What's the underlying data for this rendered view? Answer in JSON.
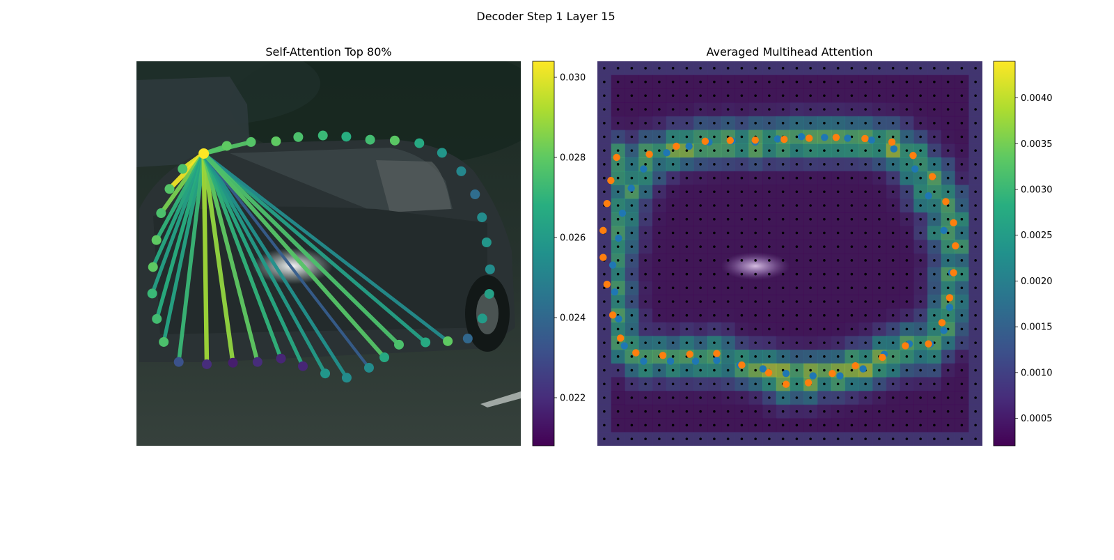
{
  "figure": {
    "title": "Decoder Step 1 Layer 15"
  },
  "chart_data": [
    {
      "type": "scatter",
      "title": "Self-Attention Top 80%",
      "background": "blurred photo of a dark grey car on a road",
      "colormap": "viridis",
      "grid": false,
      "legend": "none",
      "colorbar": {
        "min": 0.0208,
        "max": 0.0304,
        "ticks": [
          0.022,
          0.024,
          0.026,
          0.028,
          0.03
        ],
        "tick_labels": [
          "0.022",
          "0.024",
          "0.026",
          "0.028",
          "0.030"
        ]
      },
      "source_point": {
        "x": 0.175,
        "y": 0.24,
        "value": 0.0304
      },
      "points": [
        {
          "x": 0.235,
          "y": 0.22,
          "value": 0.028
        },
        {
          "x": 0.298,
          "y": 0.21,
          "value": 0.0278
        },
        {
          "x": 0.363,
          "y": 0.208,
          "value": 0.028
        },
        {
          "x": 0.421,
          "y": 0.197,
          "value": 0.0276
        },
        {
          "x": 0.485,
          "y": 0.193,
          "value": 0.0272
        },
        {
          "x": 0.546,
          "y": 0.196,
          "value": 0.0268
        },
        {
          "x": 0.608,
          "y": 0.204,
          "value": 0.0274
        },
        {
          "x": 0.672,
          "y": 0.206,
          "value": 0.0279
        },
        {
          "x": 0.736,
          "y": 0.213,
          "value": 0.0266
        },
        {
          "x": 0.795,
          "y": 0.238,
          "value": 0.0258
        },
        {
          "x": 0.845,
          "y": 0.286,
          "value": 0.0252
        },
        {
          "x": 0.881,
          "y": 0.346,
          "value": 0.0242
        },
        {
          "x": 0.899,
          "y": 0.406,
          "value": 0.0254
        },
        {
          "x": 0.911,
          "y": 0.471,
          "value": 0.0258
        },
        {
          "x": 0.92,
          "y": 0.541,
          "value": 0.0254
        },
        {
          "x": 0.918,
          "y": 0.605,
          "value": 0.0262
        },
        {
          "x": 0.9,
          "y": 0.669,
          "value": 0.026
        },
        {
          "x": 0.862,
          "y": 0.721,
          "value": 0.024
        },
        {
          "x": 0.81,
          "y": 0.728,
          "value": 0.028
        },
        {
          "x": 0.752,
          "y": 0.731,
          "value": 0.0266
        },
        {
          "x": 0.683,
          "y": 0.737,
          "value": 0.0276
        },
        {
          "x": 0.645,
          "y": 0.77,
          "value": 0.0266
        },
        {
          "x": 0.605,
          "y": 0.797,
          "value": 0.0254
        },
        {
          "x": 0.547,
          "y": 0.823,
          "value": 0.0254
        },
        {
          "x": 0.491,
          "y": 0.812,
          "value": 0.0258
        },
        {
          "x": 0.433,
          "y": 0.793,
          "value": 0.0218
        },
        {
          "x": 0.376,
          "y": 0.773,
          "value": 0.0218
        },
        {
          "x": 0.315,
          "y": 0.782,
          "value": 0.022
        },
        {
          "x": 0.251,
          "y": 0.784,
          "value": 0.0216
        },
        {
          "x": 0.183,
          "y": 0.788,
          "value": 0.022
        },
        {
          "x": 0.11,
          "y": 0.782,
          "value": 0.0232
        },
        {
          "x": 0.071,
          "y": 0.73,
          "value": 0.0276
        },
        {
          "x": 0.053,
          "y": 0.67,
          "value": 0.0274
        },
        {
          "x": 0.041,
          "y": 0.604,
          "value": 0.0272
        },
        {
          "x": 0.043,
          "y": 0.535,
          "value": 0.028
        },
        {
          "x": 0.052,
          "y": 0.465,
          "value": 0.028
        },
        {
          "x": 0.064,
          "y": 0.395,
          "value": 0.0276
        },
        {
          "x": 0.086,
          "y": 0.332,
          "value": 0.0278
        },
        {
          "x": 0.12,
          "y": 0.28,
          "value": 0.0276
        }
      ],
      "edges": [
        {
          "to": 0.12,
          "toy": 0.28,
          "value": 0.03
        },
        {
          "to": 0.086,
          "toy": 0.332,
          "value": 0.0302
        },
        {
          "to": 0.064,
          "toy": 0.395,
          "value": 0.0284
        },
        {
          "to": 0.052,
          "toy": 0.465,
          "value": 0.027
        },
        {
          "to": 0.043,
          "toy": 0.535,
          "value": 0.0266
        },
        {
          "to": 0.041,
          "toy": 0.604,
          "value": 0.0262
        },
        {
          "to": 0.053,
          "toy": 0.67,
          "value": 0.0268
        },
        {
          "to": 0.071,
          "toy": 0.73,
          "value": 0.0264
        },
        {
          "to": 0.11,
          "toy": 0.782,
          "value": 0.0272
        },
        {
          "to": 0.183,
          "toy": 0.788,
          "value": 0.029
        },
        {
          "to": 0.251,
          "toy": 0.784,
          "value": 0.0288
        },
        {
          "to": 0.315,
          "toy": 0.782,
          "value": 0.028
        },
        {
          "to": 0.376,
          "toy": 0.773,
          "value": 0.027
        },
        {
          "to": 0.433,
          "toy": 0.793,
          "value": 0.0266
        },
        {
          "to": 0.491,
          "toy": 0.812,
          "value": 0.026
        },
        {
          "to": 0.547,
          "toy": 0.823,
          "value": 0.0256
        },
        {
          "to": 0.605,
          "toy": 0.797,
          "value": 0.0236
        },
        {
          "to": 0.645,
          "toy": 0.77,
          "value": 0.0278
        },
        {
          "to": 0.752,
          "toy": 0.731,
          "value": 0.0262
        },
        {
          "to": 0.81,
          "toy": 0.728,
          "value": 0.0254
        },
        {
          "to": 0.683,
          "toy": 0.737,
          "value": 0.0276
        },
        {
          "to": 0.298,
          "toy": 0.21,
          "value": 0.0278
        },
        {
          "to": 0.235,
          "toy": 0.22,
          "value": 0.0278
        }
      ]
    },
    {
      "type": "heatmap",
      "title": "Averaged Multihead Attention",
      "background": "blurred photo of a dark grey car on a road (dimmed)",
      "colormap": "viridis",
      "grid_size": [
        28,
        28
      ],
      "grid": false,
      "legend": "none",
      "colorbar": {
        "min": 0.0002,
        "max": 0.0044,
        "ticks": [
          0.0005,
          0.001,
          0.0015,
          0.002,
          0.0025,
          0.003,
          0.0035,
          0.004
        ],
        "tick_labels": [
          "0.0005",
          "0.0010",
          "0.0015",
          "0.0020",
          "0.0025",
          "0.0030",
          "0.0035",
          "0.0040"
        ]
      },
      "grid_point_color": "#000000",
      "series": [
        {
          "color": "#1f77b4",
          "points": [
            [
              0.18,
              0.238
            ],
            [
              0.238,
              0.221
            ],
            [
              0.29,
              0.21
            ],
            [
              0.35,
              0.207
            ],
            [
              0.41,
              0.21
            ],
            [
              0.468,
              0.202
            ],
            [
              0.53,
              0.196
            ],
            [
              0.59,
              0.198
            ],
            [
              0.65,
              0.2
            ],
            [
              0.712,
              0.205
            ],
            [
              0.77,
              0.228
            ],
            [
              0.825,
              0.28
            ],
            [
              0.86,
              0.35
            ],
            [
              0.9,
              0.44
            ],
            [
              0.92,
              0.55
            ],
            [
              0.915,
              0.64
            ],
            [
              0.9,
              0.7
            ],
            [
              0.865,
              0.735
            ],
            [
              0.81,
              0.735
            ],
            [
              0.745,
              0.762
            ],
            [
              0.69,
              0.8
            ],
            [
              0.63,
              0.818
            ],
            [
              0.56,
              0.818
            ],
            [
              0.49,
              0.812
            ],
            [
              0.43,
              0.8
            ],
            [
              0.37,
              0.79
            ],
            [
              0.31,
              0.778
            ],
            [
              0.255,
              0.78
            ],
            [
              0.19,
              0.78
            ],
            [
              0.12,
              0.78
            ],
            [
              0.07,
              0.74
            ],
            [
              0.055,
              0.67
            ],
            [
              0.045,
              0.6
            ],
            [
              0.04,
              0.53
            ],
            [
              0.055,
              0.46
            ],
            [
              0.065,
              0.395
            ],
            [
              0.088,
              0.33
            ],
            [
              0.12,
              0.28
            ]
          ]
        },
        {
          "color": "#ff7f0e",
          "points": [
            [
              0.135,
              0.242
            ],
            [
              0.205,
              0.221
            ],
            [
              0.28,
              0.208
            ],
            [
              0.345,
              0.206
            ],
            [
              0.41,
              0.205
            ],
            [
              0.485,
              0.203
            ],
            [
              0.55,
              0.2
            ],
            [
              0.62,
              0.198
            ],
            [
              0.695,
              0.201
            ],
            [
              0.765,
              0.21
            ],
            [
              0.82,
              0.245
            ],
            [
              0.87,
              0.3
            ],
            [
              0.905,
              0.365
            ],
            [
              0.925,
              0.42
            ],
            [
              0.93,
              0.48
            ],
            [
              0.925,
              0.55
            ],
            [
              0.915,
              0.615
            ],
            [
              0.895,
              0.68
            ],
            [
              0.86,
              0.735
            ],
            [
              0.8,
              0.74
            ],
            [
              0.74,
              0.77
            ],
            [
              0.67,
              0.792
            ],
            [
              0.61,
              0.812
            ],
            [
              0.548,
              0.836
            ],
            [
              0.49,
              0.84
            ],
            [
              0.445,
              0.81
            ],
            [
              0.375,
              0.79
            ],
            [
              0.31,
              0.76
            ],
            [
              0.24,
              0.762
            ],
            [
              0.17,
              0.765
            ],
            [
              0.1,
              0.758
            ],
            [
              0.06,
              0.72
            ],
            [
              0.04,
              0.66
            ],
            [
              0.025,
              0.58
            ],
            [
              0.015,
              0.51
            ],
            [
              0.015,
              0.44
            ],
            [
              0.025,
              0.37
            ],
            [
              0.035,
              0.31
            ],
            [
              0.05,
              0.25
            ]
          ]
        }
      ]
    }
  ]
}
